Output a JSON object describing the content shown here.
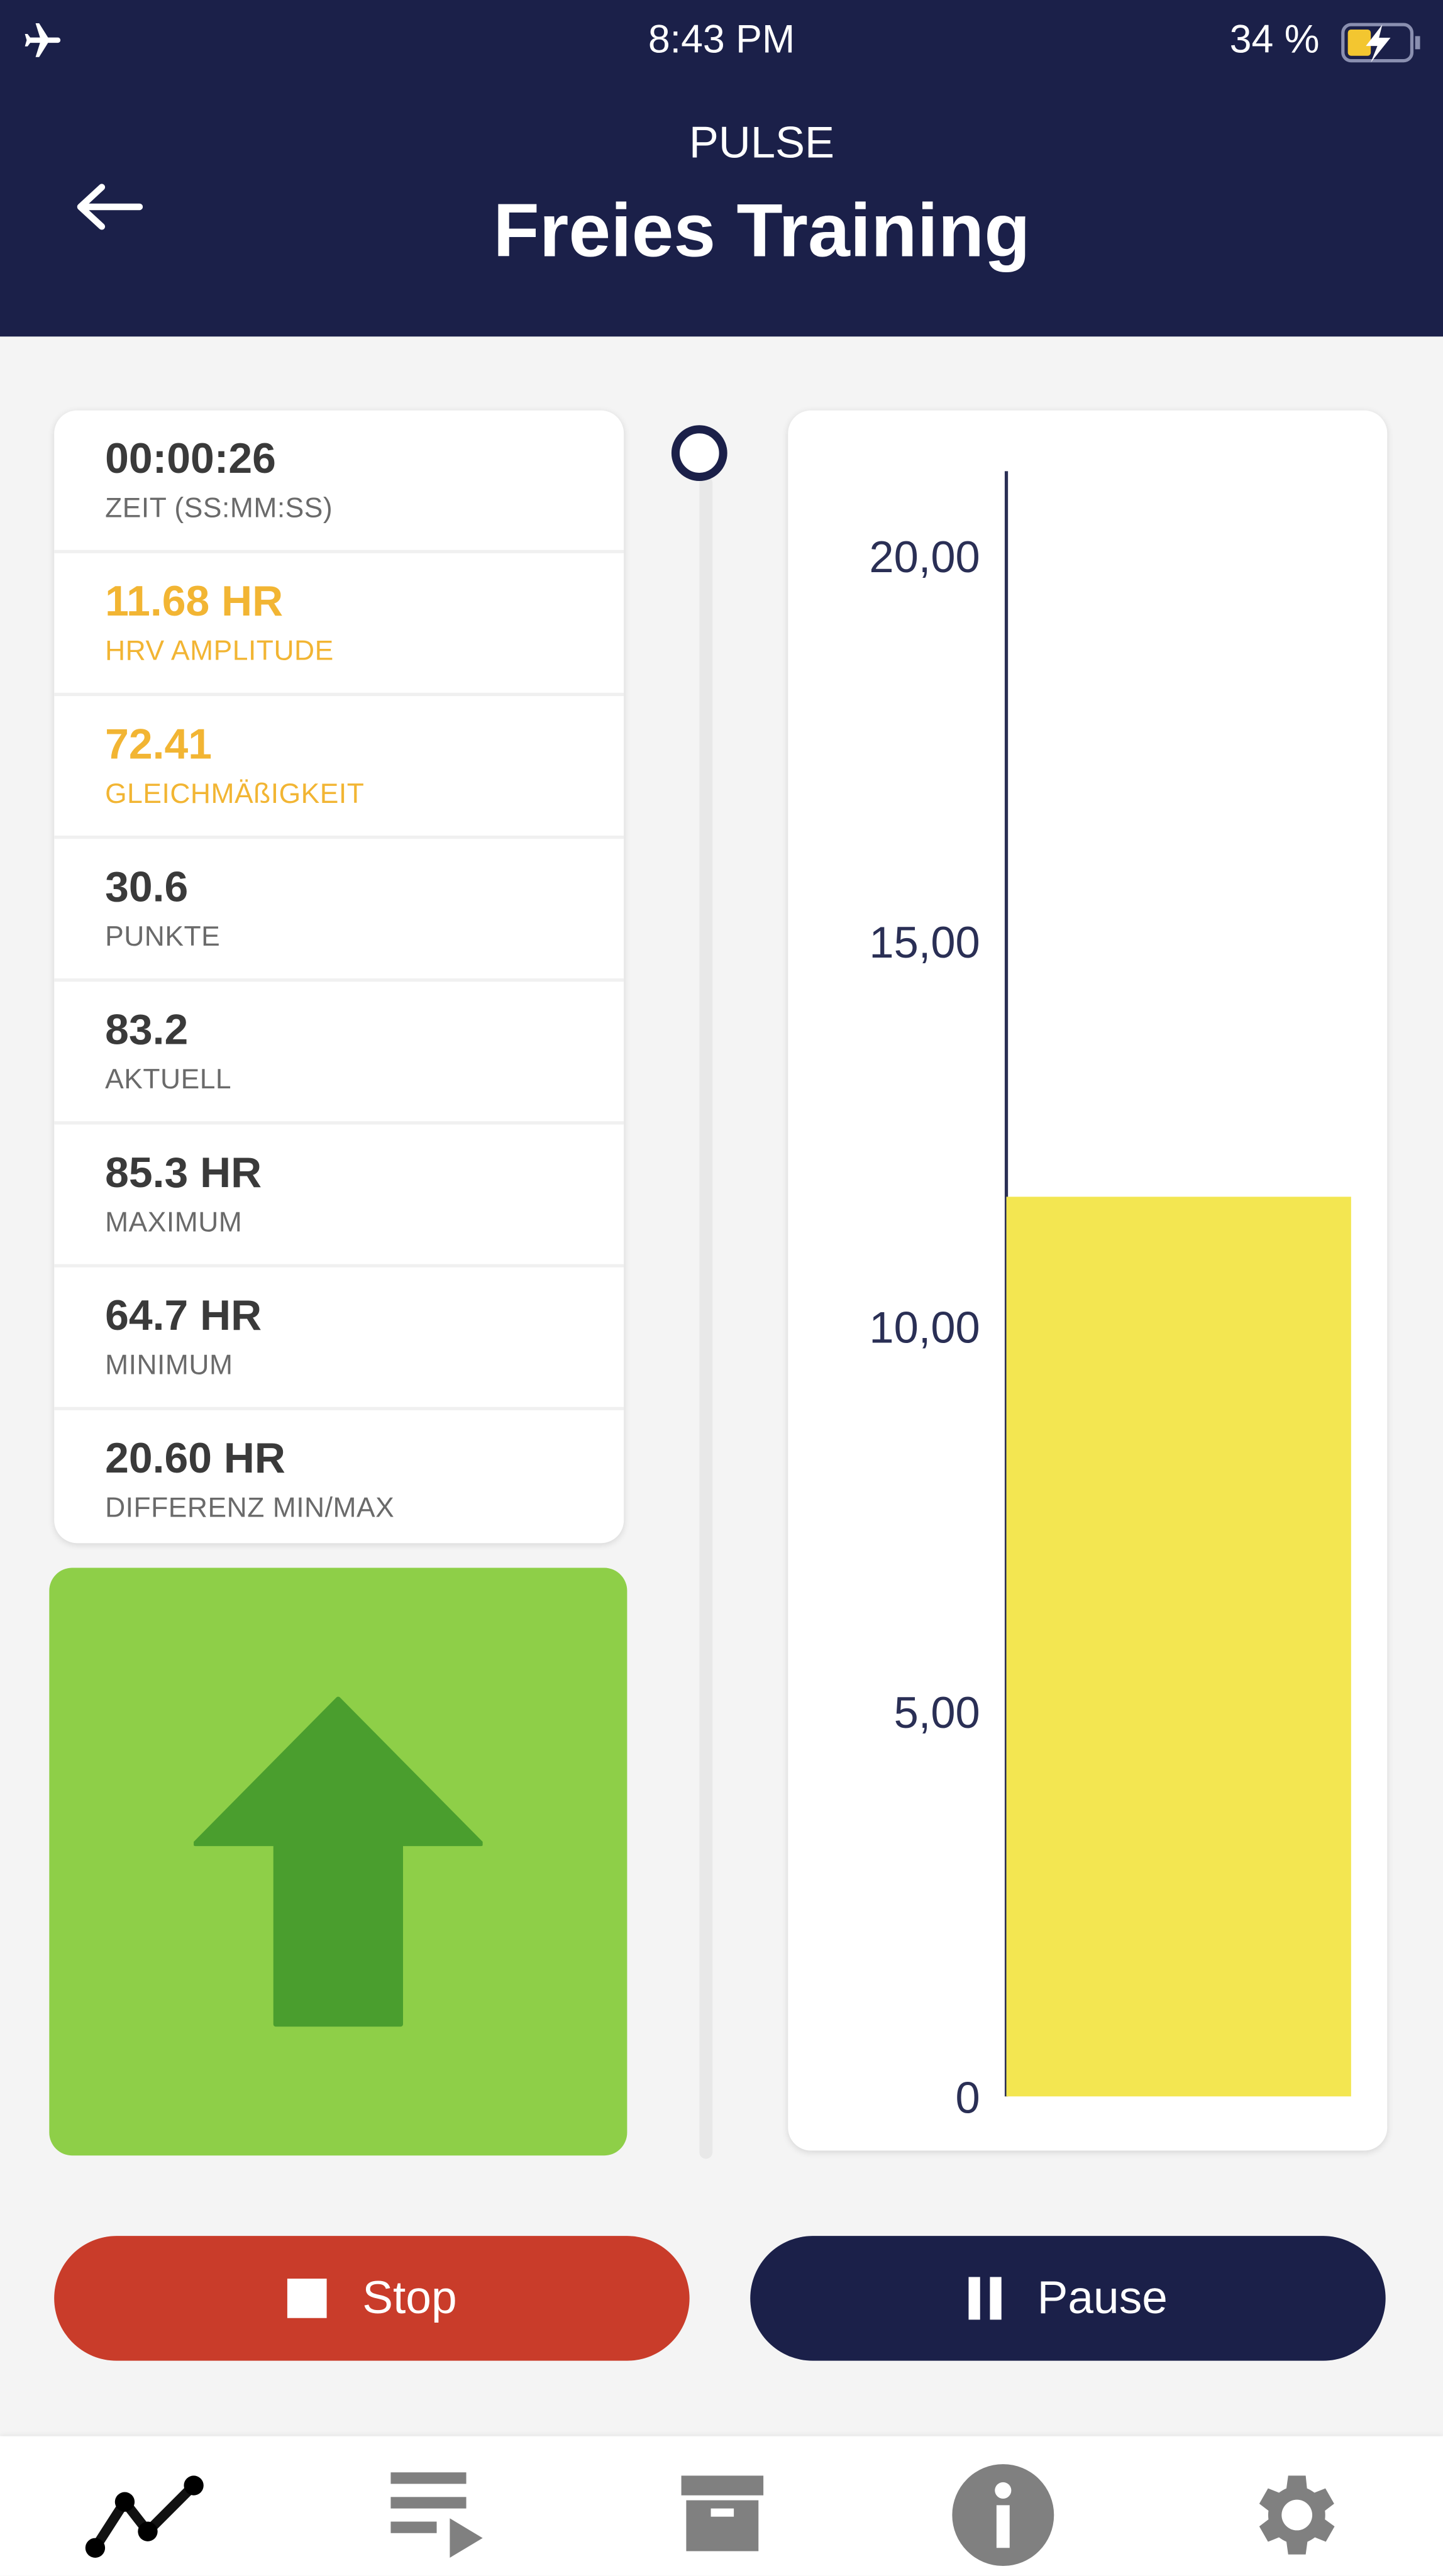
{
  "status_bar": {
    "time": "8:43 PM",
    "battery": "34 %",
    "icons": [
      "airplane-icon",
      "battery-charging-icon"
    ]
  },
  "header": {
    "subtitle": "PULSE",
    "title": "Freies Training",
    "back_icon": "arrow-left-icon"
  },
  "metrics": [
    {
      "value": "00:00:26",
      "label": "ZEIT (SS:MM:SS)",
      "highlight": false
    },
    {
      "value": "11.68 HR",
      "label": "HRV AMPLITUDE",
      "highlight": true
    },
    {
      "value": "72.41",
      "label": "GLEICHMÄßIGKEIT",
      "highlight": true
    },
    {
      "value": "30.6",
      "label": "PUNKTE",
      "highlight": false
    },
    {
      "value": "83.2",
      "label": "AKTUELL",
      "highlight": false
    },
    {
      "value": "85.3 HR",
      "label": "MAXIMUM",
      "highlight": false
    },
    {
      "value": "64.7 HR",
      "label": "MINIMUM",
      "highlight": false
    },
    {
      "value": "20.60 HR",
      "label": "DIFFERENZ MIN/MAX",
      "highlight": false
    }
  ],
  "direction_indicator": {
    "icon": "arrow-up-icon",
    "color": "#8ecf48"
  },
  "chart_data": {
    "type": "bar",
    "values": [
      11.68
    ],
    "ylim": [
      0,
      21.1
    ],
    "yticks": [
      0,
      5,
      10,
      15,
      20
    ],
    "ytick_labels": [
      "0",
      "5,00",
      "10,00",
      "15,00",
      "20,00"
    ],
    "bar_color": "#f3e651",
    "grid": false
  },
  "buttons": {
    "stop": "Stop",
    "pause": "Pause"
  },
  "colors": {
    "header": "#1b2049",
    "stop": "#c93c2a",
    "pause": "#1b2049",
    "highlight": "#f2b533"
  },
  "nav": [
    {
      "icon": "chart-line-icon",
      "active": true
    },
    {
      "icon": "playlist-icon",
      "active": false
    },
    {
      "icon": "archive-icon",
      "active": false
    },
    {
      "icon": "info-icon",
      "active": false
    },
    {
      "icon": "gear-icon",
      "active": false
    }
  ]
}
